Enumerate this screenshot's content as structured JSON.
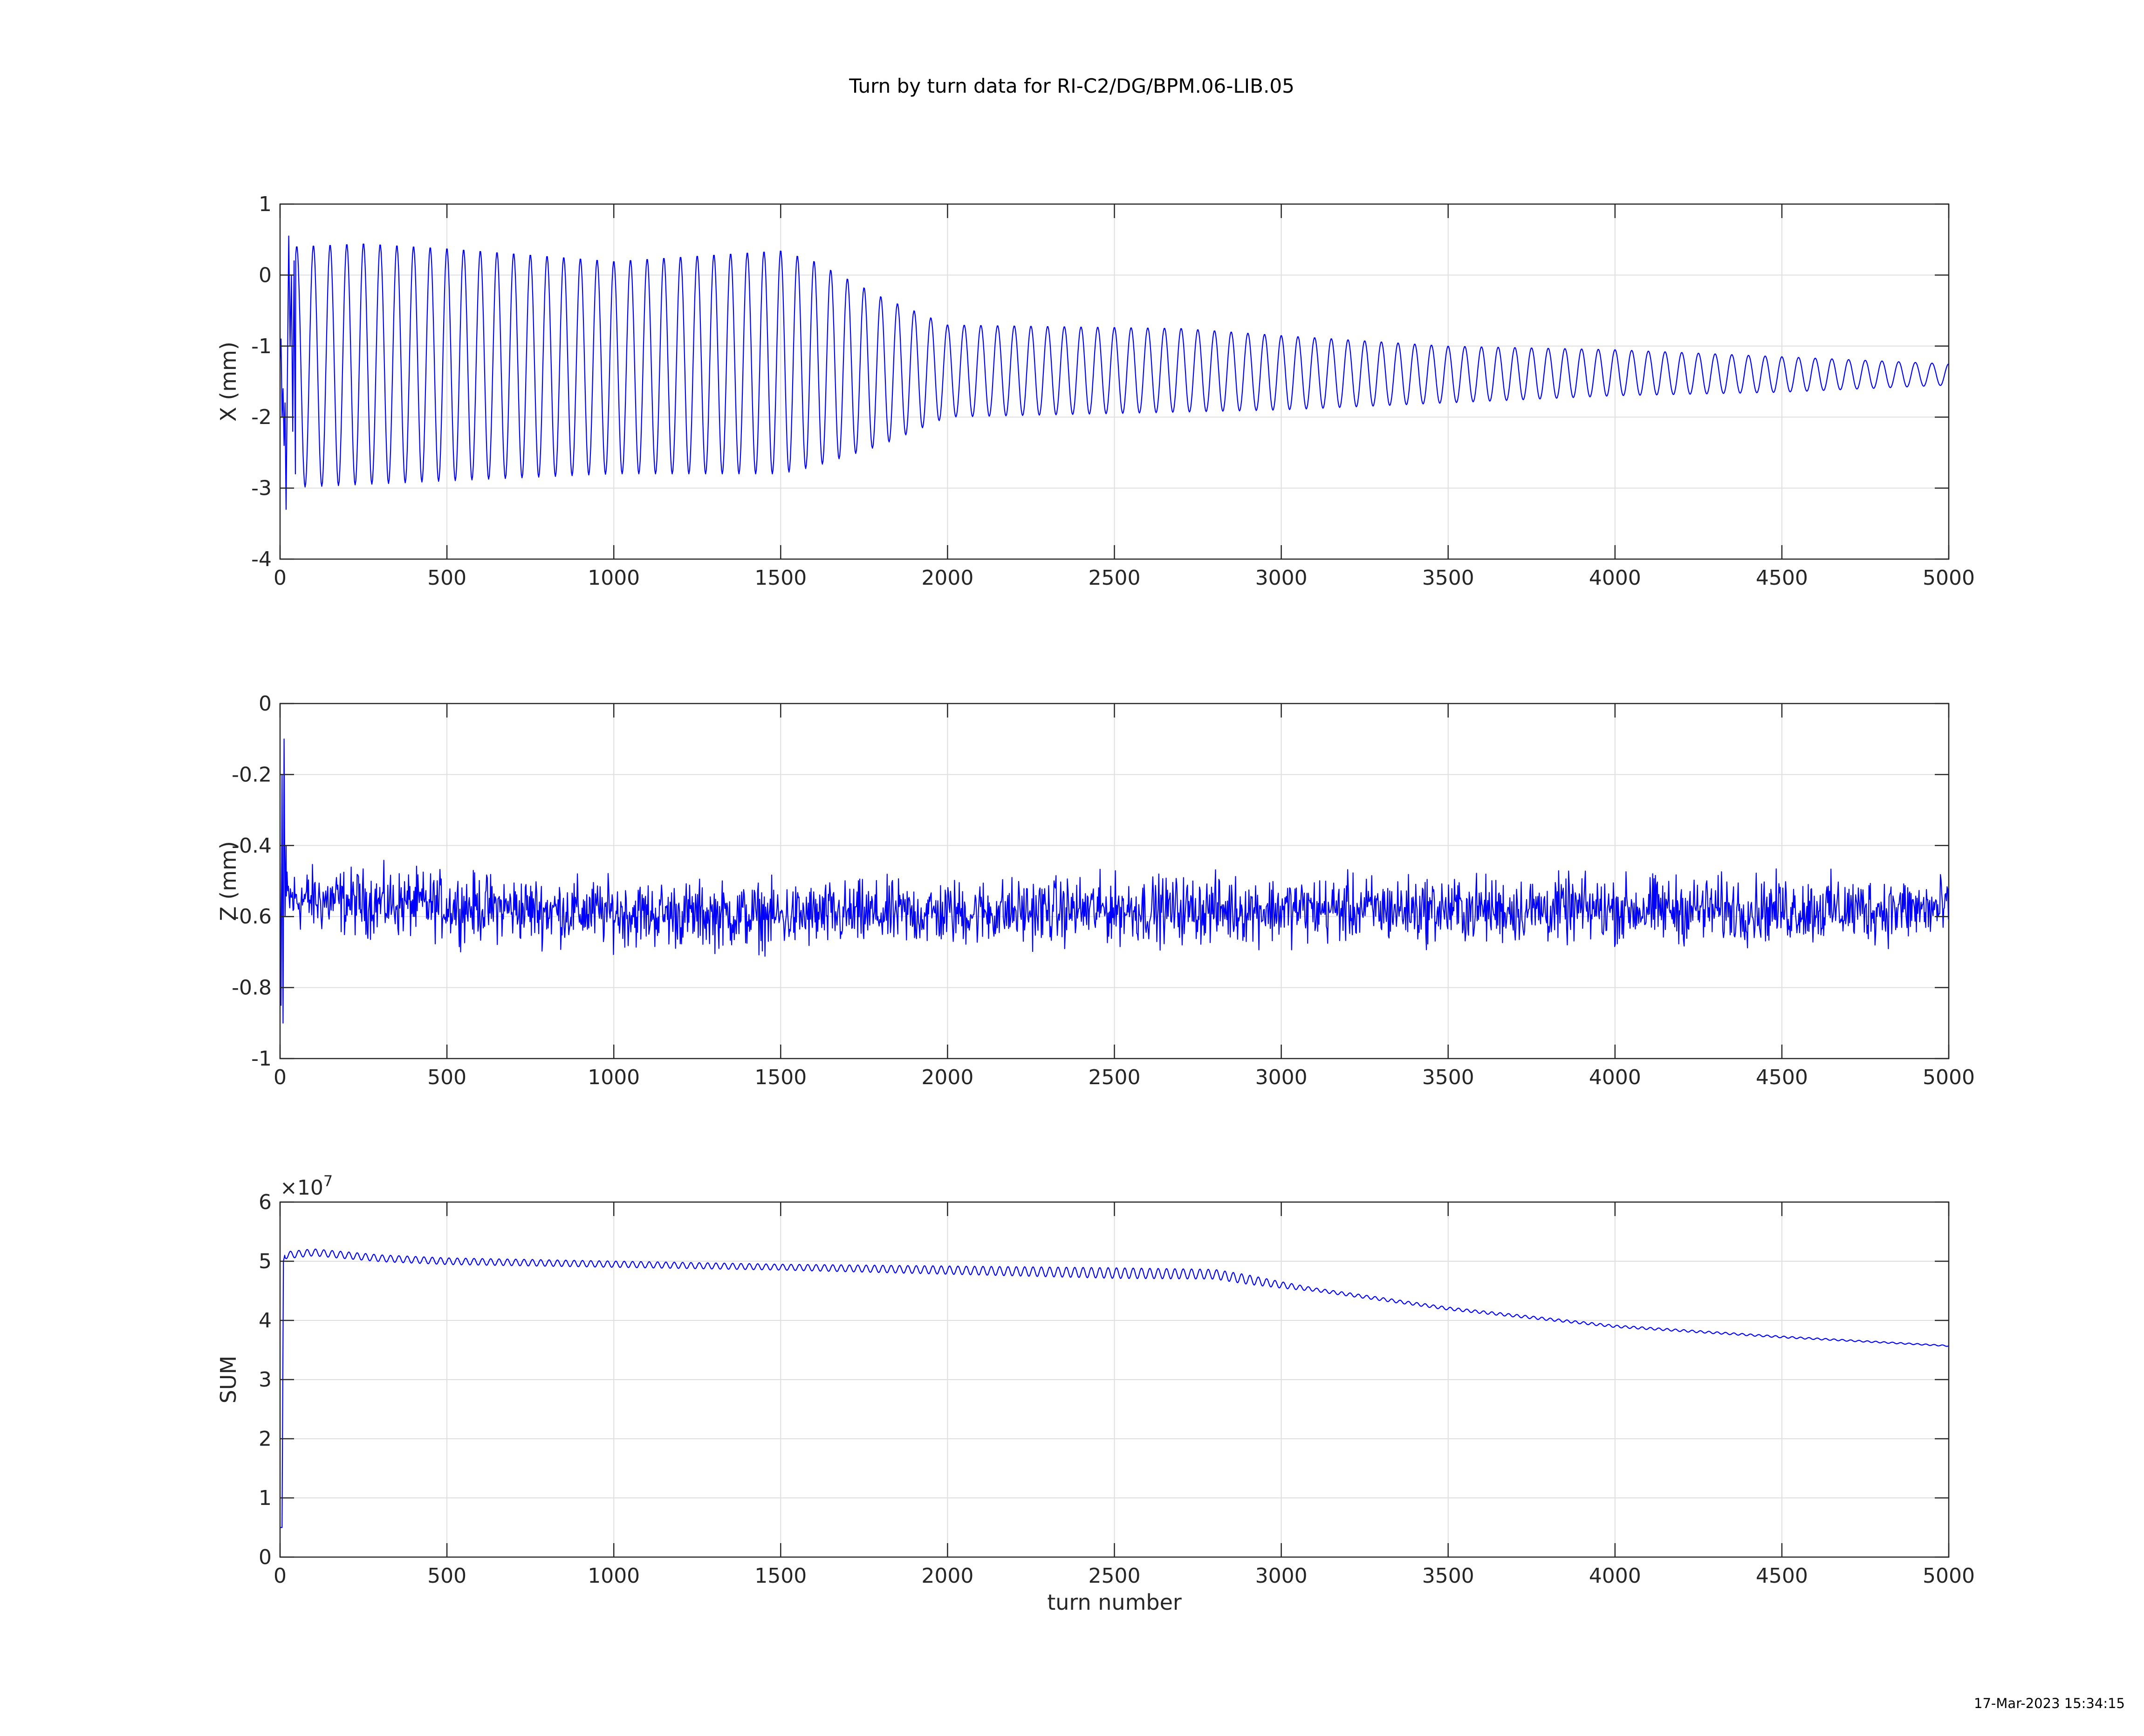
{
  "figure": {
    "title": "Turn by turn data for RI-C2/DG/BPM.06-LIB.05",
    "timestamp": "17-Mar-2023 15:34:15",
    "line_color": "#0000ff",
    "grid_color": "#dfdfdf",
    "axes_color": "#262626"
  },
  "chart_data": [
    {
      "type": "line",
      "ylabel": "X (mm)",
      "xlabel": "",
      "xlim": [
        0,
        5000
      ],
      "ylim": [
        -4,
        1
      ],
      "xticks": [
        0,
        500,
        1000,
        1500,
        2000,
        2500,
        3000,
        3500,
        4000,
        4500,
        5000
      ],
      "yticks": [
        -4,
        -3,
        -2,
        -1,
        0,
        1
      ],
      "grid": true,
      "exponent_label": "",
      "series": [
        {
          "kind": "oscillation",
          "color": "#0000ff",
          "period_turns": 50,
          "start_turn": 0,
          "end_turn": 5000,
          "initial_transient": [
            [
              0,
              -1.2
            ],
            [
              3,
              -0.9
            ],
            [
              6,
              -2.0
            ],
            [
              9,
              -1.6
            ],
            [
              12,
              -2.4
            ],
            [
              15,
              -1.8
            ],
            [
              18,
              -3.3
            ],
            [
              22,
              -1.4
            ],
            [
              26,
              0.55
            ],
            [
              30,
              -1.0
            ],
            [
              34,
              0.0
            ],
            [
              38,
              -2.2
            ],
            [
              42,
              0.2
            ],
            [
              46,
              -2.8
            ]
          ],
          "upper_envelope": [
            [
              0,
              0.4
            ],
            [
              250,
              0.45
            ],
            [
              500,
              0.38
            ],
            [
              1000,
              0.2
            ],
            [
              1500,
              0.35
            ],
            [
              1600,
              0.2
            ],
            [
              1800,
              -0.3
            ],
            [
              2000,
              -0.7
            ],
            [
              2700,
              -0.75
            ],
            [
              3000,
              -0.85
            ],
            [
              3500,
              -1.0
            ],
            [
              4000,
              -1.05
            ],
            [
              4500,
              -1.15
            ],
            [
              5000,
              -1.25
            ]
          ],
          "lower_envelope": [
            [
              0,
              -3.0
            ],
            [
              500,
              -2.9
            ],
            [
              1000,
              -2.8
            ],
            [
              1500,
              -2.8
            ],
            [
              1600,
              -2.7
            ],
            [
              1800,
              -2.4
            ],
            [
              2000,
              -2.0
            ],
            [
              2500,
              -1.95
            ],
            [
              3000,
              -1.9
            ],
            [
              3500,
              -1.8
            ],
            [
              4000,
              -1.7
            ],
            [
              4500,
              -1.65
            ],
            [
              5000,
              -1.55
            ]
          ]
        }
      ]
    },
    {
      "type": "line",
      "ylabel": "Z (mm)",
      "xlabel": "",
      "xlim": [
        0,
        5000
      ],
      "ylim": [
        -1,
        0
      ],
      "xticks": [
        0,
        500,
        1000,
        1500,
        2000,
        2500,
        3000,
        3500,
        4000,
        4500,
        5000
      ],
      "yticks": [
        -1,
        -0.8,
        -0.6,
        -0.4,
        -0.2,
        0
      ],
      "grid": true,
      "exponent_label": "",
      "series": [
        {
          "kind": "noise",
          "color": "#0000ff",
          "start_turn": 0,
          "end_turn": 5000,
          "initial_transient": [
            [
              0,
              -0.45
            ],
            [
              3,
              -0.85
            ],
            [
              6,
              -0.2
            ],
            [
              9,
              -0.9
            ],
            [
              12,
              -0.1
            ],
            [
              15,
              -0.6
            ],
            [
              18,
              -0.4
            ]
          ],
          "mean": [
            [
              0,
              -0.55
            ],
            [
              500,
              -0.57
            ],
            [
              1000,
              -0.59
            ],
            [
              1500,
              -0.6
            ],
            [
              2000,
              -0.59
            ],
            [
              2500,
              -0.58
            ],
            [
              3000,
              -0.58
            ],
            [
              3500,
              -0.58
            ],
            [
              4000,
              -0.58
            ],
            [
              4500,
              -0.58
            ],
            [
              5000,
              -0.58
            ]
          ],
          "noise_amplitude": 0.045,
          "min_value": -0.76,
          "max_value": -0.4
        }
      ]
    },
    {
      "type": "line",
      "ylabel": "SUM",
      "xlabel": "turn number",
      "xlim": [
        0,
        5000
      ],
      "ylim": [
        0,
        6
      ],
      "xticks": [
        0,
        500,
        1000,
        1500,
        2000,
        2500,
        3000,
        3500,
        4000,
        4500,
        5000
      ],
      "yticks": [
        0,
        1,
        2,
        3,
        4,
        5,
        6
      ],
      "grid": true,
      "exponent_label": "×10",
      "exponent_power": "7",
      "series": [
        {
          "kind": "decay",
          "color": "#0000ff",
          "start_turn": 0,
          "end_turn": 5000,
          "initial_transient": [
            [
              0,
              0.5
            ],
            [
              6,
              0.5
            ],
            [
              10,
              5.0
            ],
            [
              14,
              5.1
            ]
          ],
          "trend": [
            [
              14,
              5.1
            ],
            [
              100,
              5.15
            ],
            [
              300,
              5.05
            ],
            [
              500,
              5.0
            ],
            [
              1000,
              4.95
            ],
            [
              1500,
              4.9
            ],
            [
              2000,
              4.85
            ],
            [
              2500,
              4.8
            ],
            [
              2800,
              4.78
            ],
            [
              3000,
              4.6
            ],
            [
              3250,
              4.4
            ],
            [
              3500,
              4.2
            ],
            [
              4000,
              3.9
            ],
            [
              4500,
              3.72
            ],
            [
              5000,
              3.57
            ]
          ],
          "ripple_amplitude": [
            [
              0,
              0.06
            ],
            [
              1500,
              0.05
            ],
            [
              2500,
              0.09
            ],
            [
              2900,
              0.08
            ],
            [
              3100,
              0.03
            ],
            [
              5000,
              0.01
            ]
          ],
          "period_turns": 25
        }
      ]
    }
  ]
}
